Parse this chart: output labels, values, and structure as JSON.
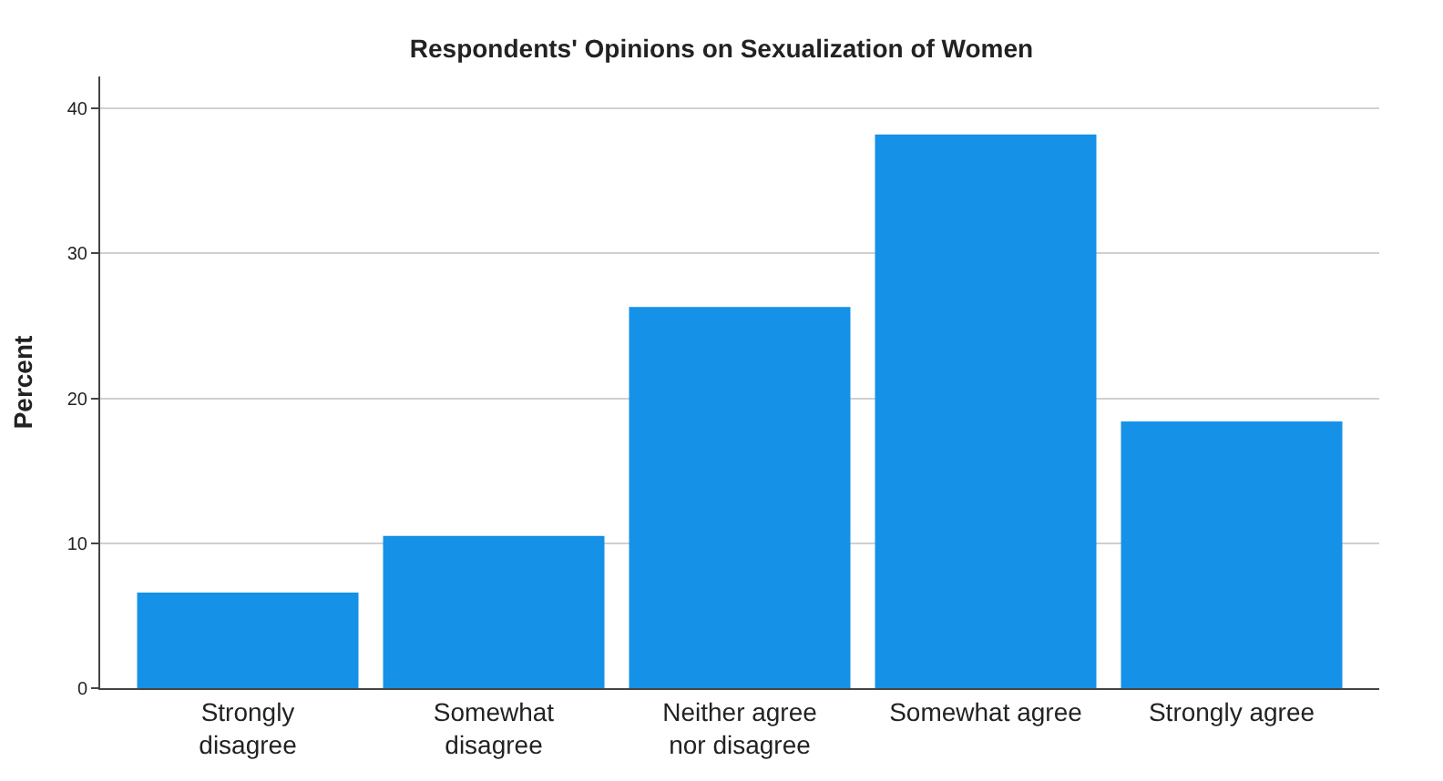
{
  "chart_data": {
    "type": "bar",
    "title": "Respondents' Opinions on Sexualization of Women",
    "ylabel": "Percent",
    "categories": [
      "Strongly disagree",
      "Somewhat disagree",
      "Neither agree nor disagree",
      "Somewhat agree",
      "Strongly agree"
    ],
    "values": [
      6.6,
      10.5,
      26.3,
      38.2,
      18.4
    ],
    "color": "#1591e8",
    "ylim": [
      0,
      42.2
    ],
    "yticks": [
      0,
      10,
      20,
      30,
      40
    ],
    "grid": "y"
  }
}
